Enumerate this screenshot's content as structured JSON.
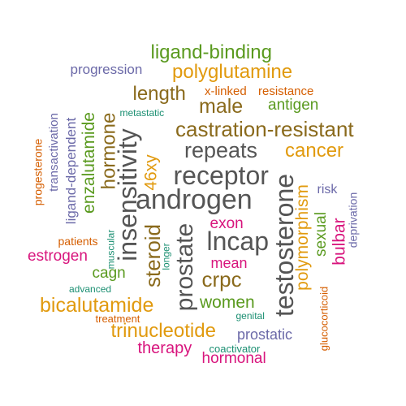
{
  "palette": {
    "green": "#5a9a1f",
    "orange": "#e19a0e",
    "brown": "#8a6a1c",
    "gray": "#555555",
    "purple": "#6b69a8",
    "pink": "#d8157d",
    "red": "#d55e00",
    "teal": "#1b8f72"
  },
  "words": [
    {
      "id": "ligand-binding",
      "text": "ligand-binding",
      "color": "green"
    },
    {
      "id": "progression",
      "text": "progression",
      "color": "purple"
    },
    {
      "id": "polyglutamine",
      "text": "polyglutamine",
      "color": "orange"
    },
    {
      "id": "length",
      "text": "length",
      "color": "brown"
    },
    {
      "id": "x-linked",
      "text": "x-linked",
      "color": "red"
    },
    {
      "id": "resistance",
      "text": "resistance",
      "color": "red"
    },
    {
      "id": "male",
      "text": "male",
      "color": "brown"
    },
    {
      "id": "antigen",
      "text": "antigen",
      "color": "green"
    },
    {
      "id": "metastatic",
      "text": "metastatic",
      "color": "teal"
    },
    {
      "id": "castration-resistant",
      "text": "castration-resistant",
      "color": "brown"
    },
    {
      "id": "repeats",
      "text": "repeats",
      "color": "gray"
    },
    {
      "id": "cancer",
      "text": "cancer",
      "color": "orange"
    },
    {
      "id": "receptor",
      "text": "receptor",
      "color": "gray"
    },
    {
      "id": "androgen",
      "text": "androgen",
      "color": "gray"
    },
    {
      "id": "progesterone",
      "text": "progesterone",
      "color": "red"
    },
    {
      "id": "transactivation",
      "text": "transactivation",
      "color": "purple"
    },
    {
      "id": "ligand-dependent",
      "text": "ligand-dependent",
      "color": "purple"
    },
    {
      "id": "enzalutamide",
      "text": "enzalutamide",
      "color": "green"
    },
    {
      "id": "hormone",
      "text": "hormone",
      "color": "brown"
    },
    {
      "id": "insensitivity",
      "text": "insensitivity",
      "color": "gray"
    },
    {
      "id": "46xy",
      "text": "46xy",
      "color": "orange"
    },
    {
      "id": "testosterone",
      "text": "testosterone",
      "color": "gray"
    },
    {
      "id": "polymorphism",
      "text": "polymorphism",
      "color": "orange"
    },
    {
      "id": "risk",
      "text": "risk",
      "color": "purple"
    },
    {
      "id": "deprivation",
      "text": "deprivation",
      "color": "purple"
    },
    {
      "id": "sexual",
      "text": "sexual",
      "color": "green"
    },
    {
      "id": "bulbar",
      "text": "bulbar",
      "color": "pink"
    },
    {
      "id": "exon",
      "text": "exon",
      "color": "pink"
    },
    {
      "id": "lncap",
      "text": "lncap",
      "color": "gray"
    },
    {
      "id": "prostate",
      "text": "prostate",
      "color": "gray"
    },
    {
      "id": "steroid",
      "text": "steroid",
      "color": "brown"
    },
    {
      "id": "muscular",
      "text": "muscular",
      "color": "teal"
    },
    {
      "id": "longer",
      "text": "longer",
      "color": "teal"
    },
    {
      "id": "patients",
      "text": "patients",
      "color": "red"
    },
    {
      "id": "estrogen",
      "text": "estrogen",
      "color": "pink"
    },
    {
      "id": "cagn",
      "text": "cagn",
      "color": "green"
    },
    {
      "id": "mean",
      "text": "mean",
      "color": "pink"
    },
    {
      "id": "crpc",
      "text": "crpc",
      "color": "brown"
    },
    {
      "id": "advanced",
      "text": "advanced",
      "color": "teal"
    },
    {
      "id": "bicalutamide",
      "text": "bicalutamide",
      "color": "orange"
    },
    {
      "id": "women",
      "text": "women",
      "color": "green"
    },
    {
      "id": "treatment",
      "text": "treatment",
      "color": "red"
    },
    {
      "id": "genital",
      "text": "genital",
      "color": "teal"
    },
    {
      "id": "glucocorticoid",
      "text": "glucocorticoid",
      "color": "red"
    },
    {
      "id": "trinucleotide",
      "text": "trinucleotide",
      "color": "orange"
    },
    {
      "id": "prostatic",
      "text": "prostatic",
      "color": "purple"
    },
    {
      "id": "therapy",
      "text": "therapy",
      "color": "pink"
    },
    {
      "id": "coactivator",
      "text": "coactivator",
      "color": "teal"
    },
    {
      "id": "hormonal",
      "text": "hormonal",
      "color": "pink"
    }
  ]
}
